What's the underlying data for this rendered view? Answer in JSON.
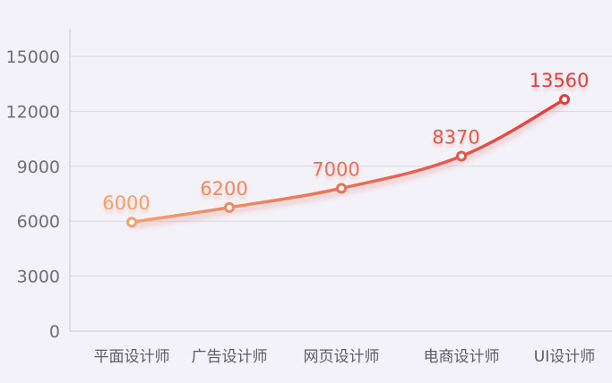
{
  "chart_data": {
    "type": "line",
    "title": "",
    "xlabel": "",
    "ylabel": "",
    "categories": [
      "平面设计师",
      "广告设计师",
      "网页设计师",
      "电商设计师",
      "UI设计师"
    ],
    "series": [
      {
        "values": [
          6000,
          6200,
          7000,
          8370,
          13560
        ],
        "labels": [
          "6000",
          "6200",
          "7000",
          "8370",
          "13560"
        ]
      }
    ],
    "display_values": [
      5950,
      6750,
      7800,
      9550,
      12650
    ],
    "ylim": [
      0,
      16500
    ],
    "yticks": [
      0,
      3000,
      6000,
      9000,
      12000,
      15000
    ],
    "ytick_labels": [
      "0",
      "3000",
      "6000",
      "9000",
      "12000",
      "15000"
    ],
    "grid": true,
    "legend": "none",
    "colors": {
      "gradient_start": "#f5a06a",
      "gradient_end": "#e53d3d",
      "grid": "#d8d8e2",
      "axis": "#c8c8d2",
      "background": "#f3f2f9"
    }
  }
}
